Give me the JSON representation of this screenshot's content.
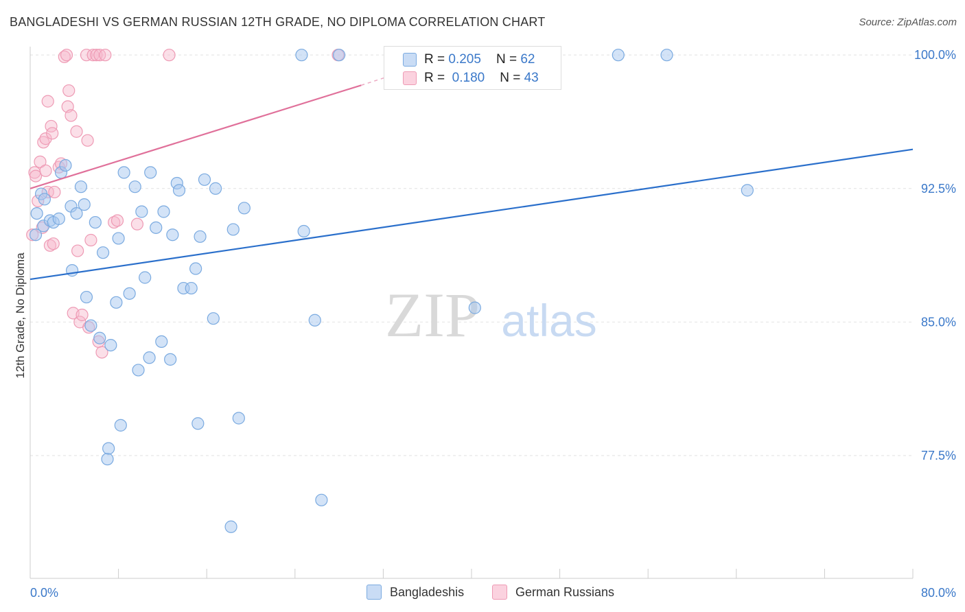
{
  "header": {
    "title": "BANGLADESHI VS GERMAN RUSSIAN 12TH GRADE, NO DIPLOMA CORRELATION CHART",
    "source": "Source: ZipAtlas.com"
  },
  "watermark": {
    "zip": "ZIP",
    "atlas": "atlas"
  },
  "legend_top": {
    "rows": [
      {
        "r_label": "R =",
        "r_value": "0.205",
        "n_label": "N =",
        "n_value": "62"
      },
      {
        "r_label": "R =",
        "r_value": "0.180",
        "n_label": "N =",
        "n_value": "43"
      }
    ]
  },
  "colors": {
    "blue_fill": "#a8c8ef",
    "blue_stroke": "#7aaae0",
    "blue_line": "#2a6fcb",
    "pink_fill": "#f6b8cb",
    "pink_stroke": "#ee9ab4",
    "pink_line": "#e0709a",
    "axis_text": "#3a78c9",
    "grid": "#e2e2e2"
  },
  "chart_data": {
    "type": "scatter",
    "title": "BANGLADESHI VS GERMAN RUSSIAN 12TH GRADE, NO DIPLOMA CORRELATION CHART",
    "xlabel": "",
    "ylabel": "12th Grade, No Diploma",
    "xlim": [
      0,
      80
    ],
    "ylim": [
      70.6,
      100.7
    ],
    "x_tick_labels": [
      "0.0%",
      "80.0%"
    ],
    "y_ticks": [
      77.5,
      85.0,
      92.5,
      100.0
    ],
    "y_tick_labels": [
      "77.5%",
      "85.0%",
      "92.5%",
      "100.0%"
    ],
    "grid": true,
    "legend_placement": "bottom",
    "series": [
      {
        "name": "Bangladeshis",
        "r": 0.205,
        "n": 62,
        "trend": {
          "x": [
            0,
            80
          ],
          "y": [
            87.4,
            94.7
          ]
        },
        "points": [
          [
            0.6,
            91.1
          ],
          [
            1.0,
            92.2
          ],
          [
            1.2,
            90.4
          ],
          [
            1.3,
            91.9
          ],
          [
            1.8,
            90.7
          ],
          [
            2.1,
            90.6
          ],
          [
            2.6,
            90.8
          ],
          [
            2.8,
            93.4
          ],
          [
            3.2,
            93.8
          ],
          [
            3.7,
            91.5
          ],
          [
            3.8,
            87.9
          ],
          [
            4.2,
            91.1
          ],
          [
            4.6,
            92.6
          ],
          [
            4.9,
            91.6
          ],
          [
            5.1,
            86.4
          ],
          [
            5.5,
            84.8
          ],
          [
            5.9,
            90.6
          ],
          [
            6.3,
            84.1
          ],
          [
            6.6,
            88.9
          ],
          [
            7.3,
            83.7
          ],
          [
            7.8,
            86.1
          ],
          [
            8.0,
            89.7
          ],
          [
            8.5,
            93.4
          ],
          [
            9.0,
            86.6
          ],
          [
            9.5,
            92.6
          ],
          [
            9.8,
            82.3
          ],
          [
            10.1,
            91.2
          ],
          [
            10.4,
            87.5
          ],
          [
            10.8,
            83.0
          ],
          [
            10.9,
            93.4
          ],
          [
            11.4,
            90.3
          ],
          [
            11.9,
            83.9
          ],
          [
            12.1,
            91.2
          ],
          [
            12.7,
            82.9
          ],
          [
            12.9,
            89.9
          ],
          [
            13.3,
            92.8
          ],
          [
            13.5,
            92.4
          ],
          [
            13.9,
            86.9
          ],
          [
            14.6,
            86.9
          ],
          [
            15.0,
            88.0
          ],
          [
            15.4,
            89.8
          ],
          [
            15.8,
            93.0
          ],
          [
            16.6,
            85.2
          ],
          [
            16.8,
            92.5
          ],
          [
            18.2,
            73.5
          ],
          [
            18.4,
            90.2
          ],
          [
            18.9,
            79.6
          ],
          [
            19.4,
            91.4
          ],
          [
            24.6,
            100.0
          ],
          [
            24.8,
            90.1
          ],
          [
            25.8,
            85.1
          ],
          [
            26.4,
            75.0
          ],
          [
            28.0,
            100.0
          ],
          [
            40.3,
            85.8
          ],
          [
            53.3,
            100.0
          ],
          [
            57.7,
            100.0
          ],
          [
            65.0,
            92.4
          ],
          [
            8.2,
            79.2
          ],
          [
            7.0,
            77.3
          ],
          [
            7.1,
            77.9
          ],
          [
            15.2,
            79.3
          ],
          [
            0.5,
            89.9
          ]
        ]
      },
      {
        "name": "German Russians",
        "r": 0.18,
        "n": 43,
        "trend": {
          "x": [
            0,
            30
          ],
          "y": [
            92.5,
            98.3
          ]
        },
        "trend_dashed": {
          "x": [
            30,
            36
          ],
          "y": [
            98.3,
            99.5
          ]
        },
        "points": [
          [
            0.2,
            89.9
          ],
          [
            0.4,
            93.4
          ],
          [
            0.5,
            93.2
          ],
          [
            0.7,
            91.8
          ],
          [
            0.9,
            94.0
          ],
          [
            1.1,
            90.3
          ],
          [
            1.2,
            95.1
          ],
          [
            1.4,
            93.5
          ],
          [
            1.4,
            95.3
          ],
          [
            1.6,
            97.4
          ],
          [
            1.6,
            92.3
          ],
          [
            1.8,
            89.3
          ],
          [
            1.9,
            96.0
          ],
          [
            2.0,
            95.6
          ],
          [
            2.1,
            89.4
          ],
          [
            2.2,
            92.3
          ],
          [
            2.6,
            93.7
          ],
          [
            2.8,
            93.9
          ],
          [
            3.1,
            99.9
          ],
          [
            3.3,
            100.0
          ],
          [
            3.4,
            97.1
          ],
          [
            3.5,
            98.0
          ],
          [
            3.7,
            96.6
          ],
          [
            3.9,
            85.5
          ],
          [
            4.2,
            95.7
          ],
          [
            4.3,
            89.0
          ],
          [
            4.5,
            85.0
          ],
          [
            4.7,
            85.4
          ],
          [
            5.2,
            95.2
          ],
          [
            5.3,
            84.7
          ],
          [
            5.5,
            89.6
          ],
          [
            5.1,
            100.0
          ],
          [
            5.7,
            100.0
          ],
          [
            6.0,
            100.0
          ],
          [
            6.2,
            83.9
          ],
          [
            6.3,
            100.0
          ],
          [
            6.5,
            83.3
          ],
          [
            6.8,
            100.0
          ],
          [
            7.6,
            90.6
          ],
          [
            7.9,
            90.7
          ],
          [
            9.7,
            90.5
          ],
          [
            12.6,
            100.0
          ],
          [
            27.9,
            100.0
          ]
        ]
      }
    ]
  }
}
